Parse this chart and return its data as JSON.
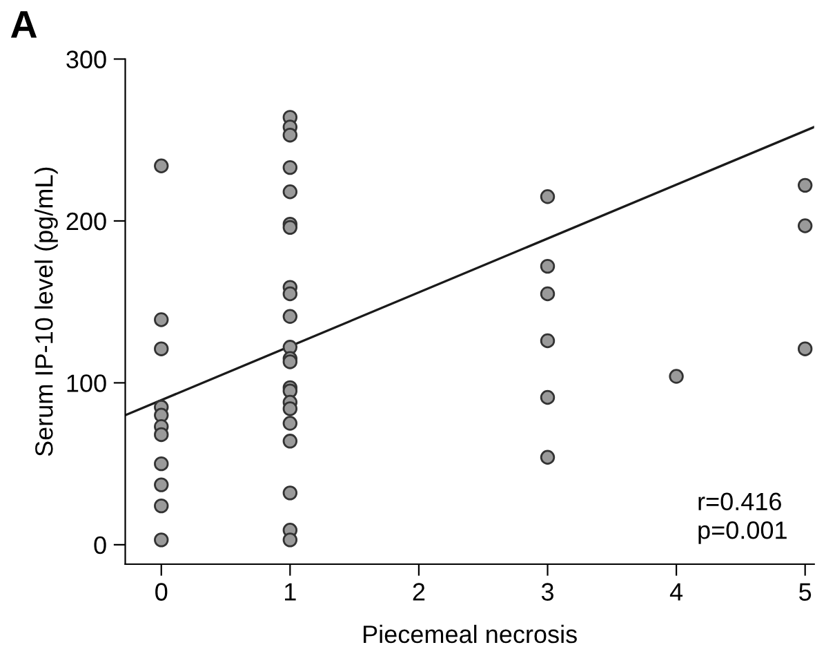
{
  "chart_data": {
    "type": "scatter",
    "title": "A",
    "xlabel": "Piecemeal necrosis",
    "ylabel": "Serum IP-10 level (pg/mL)",
    "xlim": [
      -0.28,
      5.07
    ],
    "ylim": [
      -12,
      300
    ],
    "xticks": [
      0,
      1,
      2,
      3,
      4,
      5
    ],
    "yticks": [
      0,
      100,
      200,
      300
    ],
    "grid": false,
    "legend": false,
    "marker": "circle",
    "series": [
      {
        "color": "#9a9a9a",
        "x": [
          0,
          0,
          0,
          0,
          0,
          0,
          0,
          0,
          0,
          0,
          0,
          1,
          1,
          1,
          1,
          1,
          1,
          1,
          1,
          1,
          1,
          1,
          1,
          1,
          1,
          1,
          1,
          1,
          1,
          1,
          1,
          1,
          1,
          3,
          3,
          3,
          3,
          3,
          3,
          4,
          5,
          5,
          5
        ],
        "values": [
          234,
          139,
          121,
          85,
          80,
          73,
          68,
          50,
          37,
          24,
          3,
          264,
          258,
          253,
          233,
          218,
          198,
          196,
          159,
          155,
          141,
          122,
          115,
          113,
          97,
          95,
          88,
          84,
          75,
          64,
          32,
          9,
          3,
          215,
          172,
          155,
          126,
          91,
          54,
          104,
          222,
          197,
          121
        ]
      },
      {
        "type": "line",
        "color": "#1a1a1a",
        "x": [
          -0.28,
          5.07
        ],
        "values": [
          80,
          258
        ],
        "marker": "none"
      }
    ],
    "annotations": [
      "r=0.416\np=0.001"
    ]
  }
}
